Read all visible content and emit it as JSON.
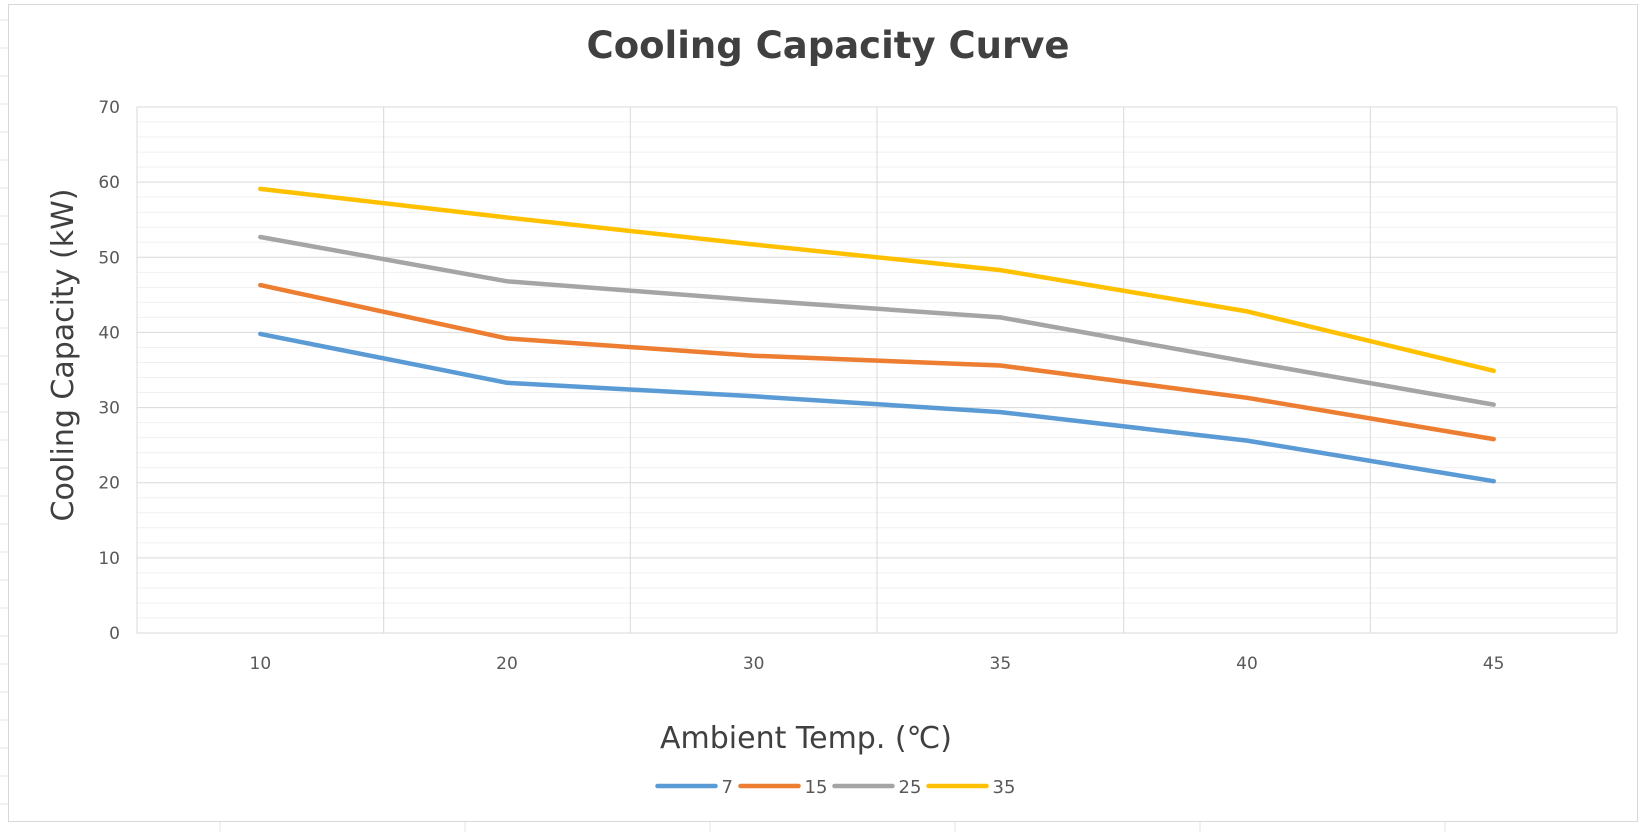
{
  "chart_data": {
    "type": "line",
    "title": "Cooling Capacity Curve",
    "xlabel": "Ambient Temp. (℃)",
    "ylabel": "Cooling Capacity (kW)",
    "categories": [
      "10",
      "20",
      "30",
      "35",
      "40",
      "45"
    ],
    "ylim": [
      0,
      70
    ],
    "yticks": [
      0,
      10,
      20,
      30,
      40,
      50,
      60,
      70
    ],
    "grid": true,
    "legend_position": "bottom",
    "series": [
      {
        "name": "7",
        "color": "#5b9bd5",
        "values": [
          39.8,
          33.3,
          31.5,
          29.4,
          25.6,
          20.2
        ]
      },
      {
        "name": "15",
        "color": "#ed7d31",
        "values": [
          46.3,
          39.2,
          36.9,
          35.6,
          31.3,
          25.8
        ]
      },
      {
        "name": "25",
        "color": "#a5a5a5",
        "values": [
          52.7,
          46.8,
          44.3,
          42.0,
          36.1,
          30.4
        ]
      },
      {
        "name": "35",
        "color": "#ffc000",
        "values": [
          59.1,
          55.3,
          51.7,
          48.3,
          42.8,
          34.9
        ]
      }
    ]
  }
}
